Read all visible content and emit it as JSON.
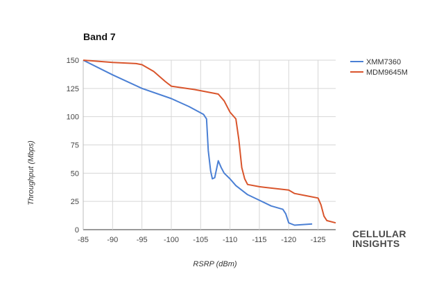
{
  "brand": {
    "line1": "CELLULAR",
    "line2": "INSIGHTS"
  },
  "chart_data": {
    "type": "line",
    "title": "Band 7",
    "xlabel": "RSRP (dBm)",
    "ylabel": "Throughput (Mbps)",
    "xlim": [
      -85,
      -128
    ],
    "ylim": [
      0,
      150
    ],
    "x_ticks": [
      -85,
      -90,
      -95,
      -100,
      -105,
      -110,
      -115,
      -120,
      -125
    ],
    "x_tick_labels": [
      "-85",
      "-90",
      "-95",
      "-100",
      "-105",
      "-110",
      "-115",
      "-120",
      "-125"
    ],
    "y_ticks": [
      0,
      25,
      50,
      75,
      100,
      125,
      150
    ],
    "y_tick_labels": [
      "0",
      "25",
      "50",
      "75",
      "100",
      "125",
      "150"
    ],
    "grid": true,
    "legend_position": "right",
    "series": [
      {
        "name": "XMM7360",
        "color": "#4a7fd4",
        "points": [
          [
            -85,
            150
          ],
          [
            -90,
            137
          ],
          [
            -95,
            125
          ],
          [
            -100,
            116
          ],
          [
            -103,
            109
          ],
          [
            -105.5,
            102
          ],
          [
            -106,
            98
          ],
          [
            -106.3,
            70
          ],
          [
            -106.7,
            52
          ],
          [
            -107,
            45
          ],
          [
            -107.4,
            46
          ],
          [
            -108,
            61
          ],
          [
            -108.5,
            55
          ],
          [
            -109,
            50
          ],
          [
            -110,
            45
          ],
          [
            -111,
            39
          ],
          [
            -113,
            31
          ],
          [
            -115,
            26
          ],
          [
            -117,
            21
          ],
          [
            -119,
            18
          ],
          [
            -119.5,
            14
          ],
          [
            -120,
            6
          ],
          [
            -121,
            4
          ],
          [
            -124,
            5
          ]
        ]
      },
      {
        "name": "MDM9645M",
        "color": "#d9542b",
        "points": [
          [
            -85,
            150
          ],
          [
            -90,
            148
          ],
          [
            -94,
            147
          ],
          [
            -95,
            146
          ],
          [
            -97,
            140
          ],
          [
            -99,
            131
          ],
          [
            -100,
            127
          ],
          [
            -104,
            124
          ],
          [
            -108,
            120
          ],
          [
            -109,
            114
          ],
          [
            -110,
            104
          ],
          [
            -111,
            98
          ],
          [
            -111.5,
            80
          ],
          [
            -112,
            55
          ],
          [
            -112.5,
            45
          ],
          [
            -113,
            40
          ],
          [
            -115,
            38
          ],
          [
            -120,
            35
          ],
          [
            -121,
            32
          ],
          [
            -123,
            30
          ],
          [
            -125,
            28
          ],
          [
            -125.5,
            22
          ],
          [
            -126,
            12
          ],
          [
            -126.5,
            8
          ],
          [
            -128,
            6
          ]
        ]
      }
    ]
  }
}
